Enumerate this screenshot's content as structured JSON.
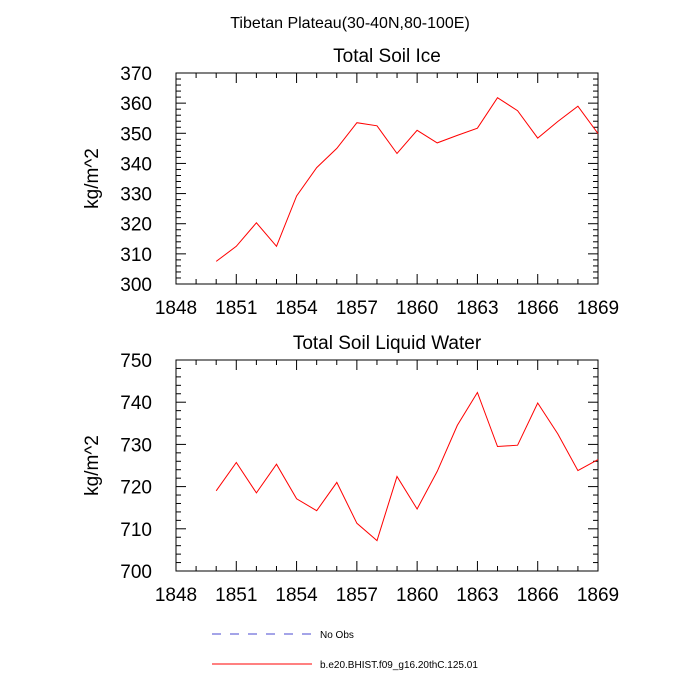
{
  "figure": {
    "title": "Tibetan Plateau(30-40N,80-100E)"
  },
  "chart_data": [
    {
      "type": "line",
      "title": "Total Soil Ice",
      "xlabel": "",
      "ylabel": "kg/m^2",
      "xlim": [
        1848,
        1869
      ],
      "ylim": [
        300,
        370
      ],
      "xticks": [
        1848,
        1851,
        1854,
        1857,
        1860,
        1863,
        1866,
        1869
      ],
      "yticks": [
        300,
        310,
        320,
        330,
        340,
        350,
        360,
        370
      ],
      "grid": false,
      "series": [
        {
          "name": "b.e20.BHIST.f09_g16.20thC.125.01",
          "color": "#ff0000",
          "x": [
            1850,
            1851,
            1852,
            1853,
            1854,
            1855,
            1856,
            1857,
            1858,
            1859,
            1860,
            1861,
            1862,
            1863,
            1864,
            1865,
            1866,
            1867,
            1868,
            1869
          ],
          "y": [
            307.5,
            312.5,
            320.3,
            312.5,
            329.2,
            338.6,
            345.0,
            353.5,
            352.5,
            343.3,
            351.0,
            346.8,
            349.3,
            351.7,
            361.8,
            357.5,
            348.4,
            353.9,
            359.0,
            349.9
          ]
        }
      ]
    },
    {
      "type": "line",
      "title": "Total Soil Liquid Water",
      "xlabel": "",
      "ylabel": "kg/m^2",
      "xlim": [
        1848,
        1869
      ],
      "ylim": [
        700,
        750
      ],
      "xticks": [
        1848,
        1851,
        1854,
        1857,
        1860,
        1863,
        1866,
        1869
      ],
      "yticks": [
        700,
        710,
        720,
        730,
        740,
        750
      ],
      "grid": false,
      "series": [
        {
          "name": "b.e20.BHIST.f09_g16.20thC.125.01",
          "color": "#ff0000",
          "x": [
            1850,
            1851,
            1852,
            1853,
            1854,
            1855,
            1856,
            1857,
            1858,
            1859,
            1860,
            1861,
            1862,
            1863,
            1864,
            1865,
            1866,
            1867,
            1868,
            1869
          ],
          "y": [
            719.0,
            725.7,
            718.5,
            725.3,
            717.1,
            714.3,
            721.0,
            711.3,
            707.2,
            722.4,
            714.7,
            723.6,
            734.5,
            742.3,
            729.5,
            729.8,
            739.8,
            732.5,
            723.8,
            726.4
          ]
        }
      ]
    }
  ],
  "legend": {
    "placement": "bottom",
    "entries": [
      {
        "label": "No Obs",
        "color": "#4a4ad0",
        "style": "dashed"
      },
      {
        "label": "b.e20.BHIST.f09_g16.20thC.125.01",
        "color": "#ff0000",
        "style": "solid"
      }
    ]
  }
}
